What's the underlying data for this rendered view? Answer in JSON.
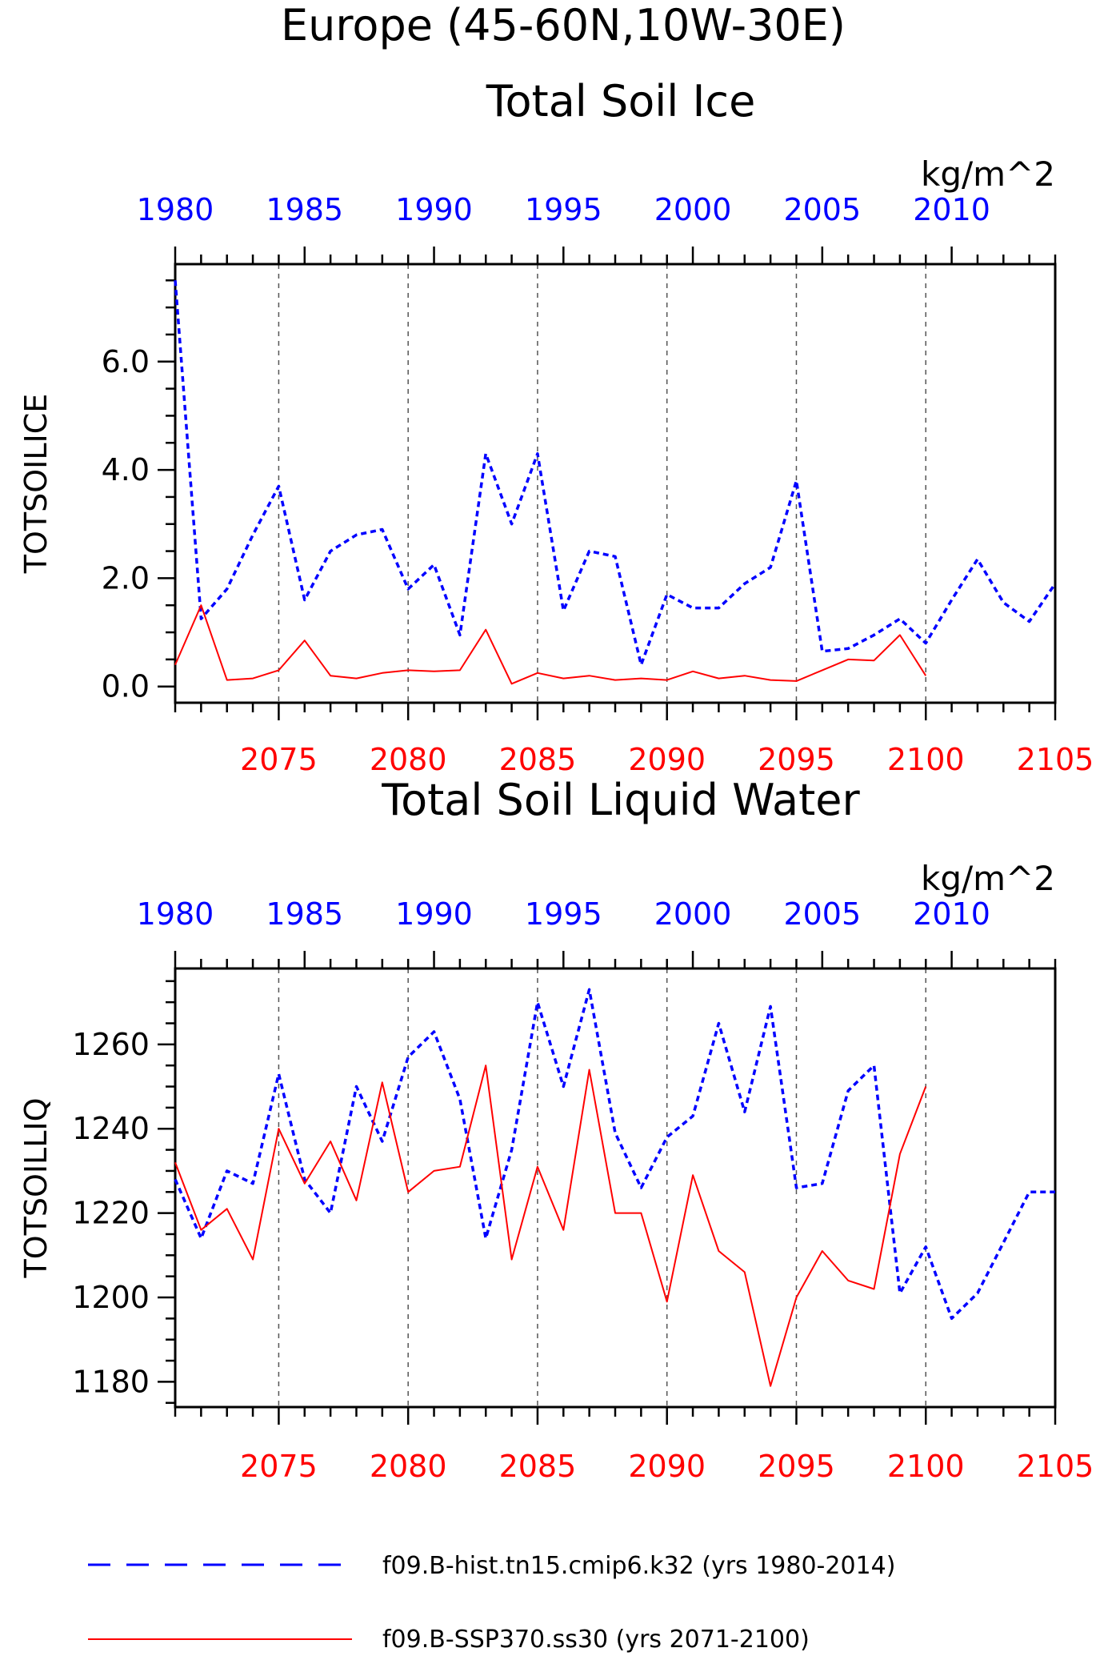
{
  "title": {
    "line1": "Europe (45-60N,10W-30E)",
    "line2": "Total Soil Ice"
  },
  "colors": {
    "hist": "#0000ff",
    "ssp": "#ff0000",
    "axis": "#000000",
    "grid": "#555555"
  },
  "legend": {
    "hist": "f09.B-hist.tn15.cmip6.k32 (yrs 1980-2014)",
    "ssp": "f09.B-SSP370.ss30 (yrs 2071-2100)"
  },
  "chart_data": [
    {
      "type": "line",
      "title": "Total Soil Ice",
      "units": "kg/m^2",
      "ylabel": "TOTSOILICE",
      "ylim": [
        -0.3,
        7.8
      ],
      "yticks": [
        "0.0",
        "2.0",
        "4.0",
        "6.0"
      ],
      "x_bottom": {
        "range": [
          2071,
          2105
        ],
        "ticks": [
          "2075",
          "2080",
          "2085",
          "2090",
          "2095",
          "2100",
          "2105"
        ]
      },
      "x_top": {
        "range": [
          1980,
          2014
        ],
        "ticks": [
          "1980",
          "1985",
          "1990",
          "1995",
          "2000",
          "2005",
          "2010"
        ]
      },
      "grid": "vertical dashed at bottom major ticks",
      "series": [
        {
          "name": "f09.B-hist.tn15.cmip6.k32 (yrs 1980-2014)",
          "axis": "top",
          "style": "dashed",
          "x": [
            1980,
            1981,
            1982,
            1983,
            1984,
            1985,
            1986,
            1987,
            1988,
            1989,
            1990,
            1991,
            1992,
            1993,
            1994,
            1995,
            1996,
            1997,
            1998,
            1999,
            2000,
            2001,
            2002,
            2003,
            2004,
            2005,
            2006,
            2007,
            2008,
            2009,
            2010,
            2011,
            2012,
            2013,
            2014
          ],
          "values": [
            7.5,
            1.25,
            1.8,
            2.8,
            3.7,
            1.6,
            2.5,
            2.8,
            2.9,
            1.8,
            2.25,
            0.95,
            4.3,
            3.0,
            4.3,
            1.4,
            2.5,
            2.4,
            0.4,
            1.7,
            1.45,
            1.45,
            1.9,
            2.2,
            3.8,
            0.65,
            0.7,
            0.95,
            1.25,
            0.8,
            1.6,
            2.35,
            1.55,
            1.2,
            1.9
          ]
        },
        {
          "name": "f09.B-SSP370.ss30 (yrs 2071-2100)",
          "axis": "bottom",
          "style": "solid",
          "x": [
            2071,
            2072,
            2073,
            2074,
            2075,
            2076,
            2077,
            2078,
            2079,
            2080,
            2081,
            2082,
            2083,
            2084,
            2085,
            2086,
            2087,
            2088,
            2089,
            2090,
            2091,
            2092,
            2093,
            2094,
            2095,
            2096,
            2097,
            2098,
            2099,
            2100
          ],
          "values": [
            0.4,
            1.5,
            0.12,
            0.15,
            0.3,
            0.85,
            0.2,
            0.15,
            0.25,
            0.3,
            0.28,
            0.3,
            1.05,
            0.05,
            0.25,
            0.15,
            0.2,
            0.12,
            0.15,
            0.12,
            0.28,
            0.15,
            0.2,
            0.12,
            0.1,
            0.3,
            0.5,
            0.48,
            0.95,
            0.2
          ]
        }
      ]
    },
    {
      "type": "line",
      "title": "Total Soil Liquid Water",
      "units": "kg/m^2",
      "ylabel": "TOTSOILLIQ",
      "ylim": [
        1174,
        1278
      ],
      "yticks": [
        "1180",
        "1200",
        "1220",
        "1240",
        "1260"
      ],
      "x_bottom": {
        "range": [
          2071,
          2105
        ],
        "ticks": [
          "2075",
          "2080",
          "2085",
          "2090",
          "2095",
          "2100",
          "2105"
        ]
      },
      "x_top": {
        "range": [
          1980,
          2014
        ],
        "ticks": [
          "1980",
          "1985",
          "1990",
          "1995",
          "2000",
          "2005",
          "2010"
        ]
      },
      "grid": "vertical dashed at bottom major ticks",
      "series": [
        {
          "name": "f09.B-hist.tn15.cmip6.k32 (yrs 1980-2014)",
          "axis": "top",
          "style": "dashed",
          "x": [
            1980,
            1981,
            1982,
            1983,
            1984,
            1985,
            1986,
            1987,
            1988,
            1989,
            1990,
            1991,
            1992,
            1993,
            1994,
            1995,
            1996,
            1997,
            1998,
            1999,
            2000,
            2001,
            2002,
            2003,
            2004,
            2005,
            2006,
            2007,
            2008,
            2009,
            2010,
            2011,
            2012,
            2013,
            2014
          ],
          "values": [
            1228,
            1214,
            1230,
            1227,
            1253,
            1228,
            1220,
            1250,
            1237,
            1257,
            1263,
            1247,
            1214,
            1235,
            1270,
            1250,
            1273,
            1239,
            1226,
            1238,
            1243,
            1265,
            1244,
            1269,
            1226,
            1227,
            1249,
            1255,
            1201,
            1212,
            1195,
            1201,
            1213,
            1225,
            1225
          ]
        },
        {
          "name": "f09.B-SSP370.ss30 (yrs 2071-2100)",
          "axis": "bottom",
          "style": "solid",
          "x": [
            2071,
            2072,
            2073,
            2074,
            2075,
            2076,
            2077,
            2078,
            2079,
            2080,
            2081,
            2082,
            2083,
            2084,
            2085,
            2086,
            2087,
            2088,
            2089,
            2090,
            2091,
            2092,
            2093,
            2094,
            2095,
            2096,
            2097,
            2098,
            2099,
            2100
          ],
          "values": [
            1232,
            1216,
            1221,
            1209,
            1240,
            1227,
            1237,
            1223,
            1251,
            1225,
            1230,
            1231,
            1255,
            1209,
            1231,
            1216,
            1254,
            1220,
            1220,
            1199,
            1229,
            1211,
            1206,
            1179,
            1200,
            1211,
            1204,
            1202,
            1234,
            1250
          ]
        }
      ]
    }
  ]
}
